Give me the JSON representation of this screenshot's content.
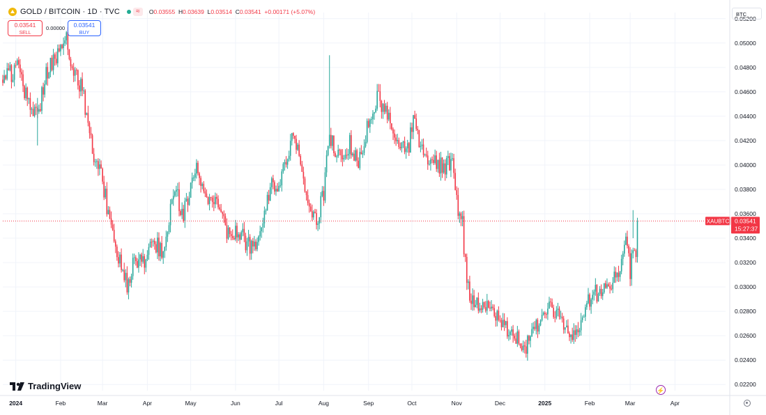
{
  "header": {
    "symbol_title": "GOLD / BITCOIN · 1D · TVC",
    "ohlc": {
      "o_label": "O",
      "o": "0.03555",
      "h_label": "H",
      "h": "0.03639",
      "l_label": "L",
      "l": "0.03514",
      "c_label": "C",
      "c": "0.03541",
      "change": "+0.00171 (+5.07%)"
    },
    "wave_icon": "≈"
  },
  "trade": {
    "sell_price": "0.03541",
    "sell_label": "SELL",
    "spread": "0.00000",
    "buy_price": "0.03541",
    "buy_label": "BUY"
  },
  "currency": "BTC",
  "branding": {
    "name": "TradingView"
  },
  "icons": [
    "gold-coin-icon",
    "market-open-dot-icon",
    "wave-icon",
    "tradingview-logo-icon",
    "lightning-icon",
    "gear-icon"
  ],
  "colors": {
    "up": "#26a69a",
    "down": "#f23645",
    "buy": "#2962ff",
    "flash": "#9c27b0"
  },
  "chart_data": {
    "type": "candlestick",
    "symbol": "XAUBTC",
    "price_label": {
      "symbol": "XAUBTC",
      "value": "0.03541",
      "countdown": "15:27:37"
    },
    "ylim": [
      0.0215,
      0.0525
    ],
    "y_ticks": [
      "0.05200",
      "0.05000",
      "0.04800",
      "0.04600",
      "0.04400",
      "0.04200",
      "0.04000",
      "0.03800",
      "0.03600",
      "0.03400",
      "0.03200",
      "0.03000",
      "0.02800",
      "0.02600",
      "0.02400",
      "0.02200"
    ],
    "x_ticks": [
      {
        "label": "2024",
        "date": "2024-01-01",
        "bold": true
      },
      {
        "label": "Feb",
        "date": "2024-02-01"
      },
      {
        "label": "Mar",
        "date": "2024-03-01"
      },
      {
        "label": "Apr",
        "date": "2024-04-01"
      },
      {
        "label": "May",
        "date": "2024-05-01"
      },
      {
        "label": "Jun",
        "date": "2024-06-01"
      },
      {
        "label": "Jul",
        "date": "2024-07-01"
      },
      {
        "label": "Aug",
        "date": "2024-08-01"
      },
      {
        "label": "Sep",
        "date": "2024-09-01"
      },
      {
        "label": "Oct",
        "date": "2024-10-01"
      },
      {
        "label": "Nov",
        "date": "2024-11-01"
      },
      {
        "label": "Dec",
        "date": "2024-12-01"
      },
      {
        "label": "2025",
        "date": "2025-01-01",
        "bold": true
      },
      {
        "label": "Feb",
        "date": "2025-02-01"
      },
      {
        "label": "Mar",
        "date": "2025-03-01"
      },
      {
        "label": "Apr",
        "date": "2025-04-01"
      }
    ],
    "x_range": [
      "2023-12-23",
      "2025-05-06"
    ],
    "anchors": [
      [
        "2023-12-23",
        0.047
      ],
      [
        "2024-01-02",
        0.048
      ],
      [
        "2024-01-10",
        0.0452
      ],
      [
        "2024-01-16",
        0.0438
      ],
      [
        "2024-01-22",
        0.0475
      ],
      [
        "2024-01-29",
        0.049
      ],
      [
        "2024-02-05",
        0.0503
      ],
      [
        "2024-02-10",
        0.0478
      ],
      [
        "2024-02-16",
        0.046
      ],
      [
        "2024-02-24",
        0.0408
      ],
      [
        "2024-02-29",
        0.0396
      ],
      [
        "2024-03-06",
        0.035
      ],
      [
        "2024-03-18",
        0.03
      ],
      [
        "2024-03-24",
        0.0325
      ],
      [
        "2024-03-30",
        0.0318
      ],
      [
        "2024-04-05",
        0.0335
      ],
      [
        "2024-04-12",
        0.033
      ],
      [
        "2024-04-20",
        0.0382
      ],
      [
        "2024-04-26",
        0.0358
      ],
      [
        "2024-05-04",
        0.04
      ],
      [
        "2024-05-12",
        0.0375
      ],
      [
        "2024-05-18",
        0.0368
      ],
      [
        "2024-05-26",
        0.0345
      ],
      [
        "2024-06-06",
        0.034
      ],
      [
        "2024-06-12",
        0.033
      ],
      [
        "2024-06-20",
        0.0352
      ],
      [
        "2024-06-26",
        0.0385
      ],
      [
        "2024-07-01",
        0.038
      ],
      [
        "2024-07-09",
        0.0418
      ],
      [
        "2024-07-14",
        0.042
      ],
      [
        "2024-07-21",
        0.0372
      ],
      [
        "2024-07-27",
        0.0355
      ],
      [
        "2024-08-01",
        0.0378
      ],
      [
        "2024-08-05",
        0.0425
      ],
      [
        "2024-08-11",
        0.0405
      ],
      [
        "2024-08-19",
        0.0418
      ],
      [
        "2024-08-25",
        0.04
      ],
      [
        "2024-08-30",
        0.0425
      ],
      [
        "2024-09-07",
        0.0458
      ],
      [
        "2024-09-15",
        0.0435
      ],
      [
        "2024-09-22",
        0.0415
      ],
      [
        "2024-09-29",
        0.0418
      ],
      [
        "2024-10-03",
        0.0438
      ],
      [
        "2024-10-09",
        0.0405
      ],
      [
        "2024-10-16",
        0.0402
      ],
      [
        "2024-10-23",
        0.0398
      ],
      [
        "2024-10-29",
        0.0405
      ],
      [
        "2024-11-02",
        0.0355
      ],
      [
        "2024-11-05",
        0.0352
      ],
      [
        "2024-11-08",
        0.03
      ],
      [
        "2024-11-15",
        0.0285
      ],
      [
        "2024-11-22",
        0.0282
      ],
      [
        "2024-12-01",
        0.027
      ],
      [
        "2024-12-10",
        0.0262
      ],
      [
        "2024-12-18",
        0.025
      ],
      [
        "2024-12-24",
        0.0268
      ],
      [
        "2024-12-31",
        0.0272
      ],
      [
        "2025-01-06",
        0.0285
      ],
      [
        "2025-01-12",
        0.027
      ],
      [
        "2025-01-18",
        0.0262
      ],
      [
        "2025-01-25",
        0.0265
      ],
      [
        "2025-02-01",
        0.029
      ],
      [
        "2025-02-08",
        0.0298
      ],
      [
        "2025-02-14",
        0.03
      ],
      [
        "2025-02-21",
        0.031
      ],
      [
        "2025-02-26",
        0.034
      ],
      [
        "2025-03-01",
        0.0312
      ],
      [
        "2025-03-03",
        0.033
      ],
      [
        "2025-03-05",
        0.0325
      ],
      [
        "2025-03-06",
        0.03541
      ]
    ]
  }
}
